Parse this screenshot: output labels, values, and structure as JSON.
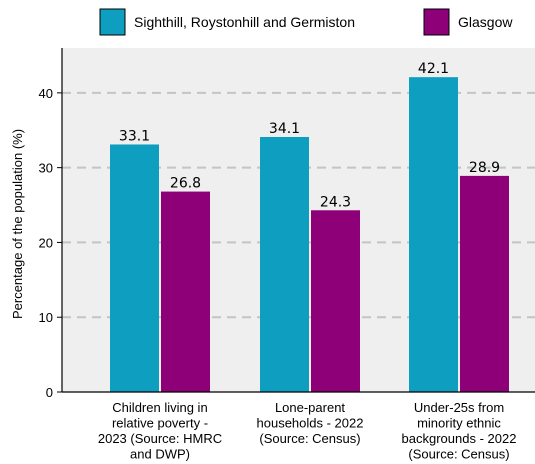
{
  "chart_data": {
    "type": "bar",
    "ylabel": "Percentage of the population (%)",
    "ylim": [
      0,
      46
    ],
    "yticks": [
      0,
      10,
      20,
      30,
      40
    ],
    "grid": "horizontal dashed",
    "legend": "top",
    "categories": [
      [
        "Children living in",
        "relative poverty -",
        "2023 (Source: HMRC",
        "and DWP)"
      ],
      [
        "Lone-parent",
        "households - 2022",
        "(Source: Census)"
      ],
      [
        "Under-25s from",
        "minority ethnic",
        "backgrounds - 2022",
        "(Source: Census)"
      ]
    ],
    "series": [
      {
        "name": "Sighthill, Roystonhill and Germiston",
        "color": "#0e9fc0",
        "values": [
          33.1,
          34.1,
          42.1
        ],
        "labels": [
          "33.1",
          "34.1",
          "42.1"
        ]
      },
      {
        "name": "Glasgow",
        "color": "#8d0078",
        "values": [
          26.8,
          24.3,
          28.9
        ],
        "labels": [
          "26.8",
          "24.3",
          "28.9"
        ]
      }
    ],
    "colors": {
      "plot_bg": "#efefef",
      "grid": "#c4c4c4",
      "axis": "#000000"
    }
  }
}
